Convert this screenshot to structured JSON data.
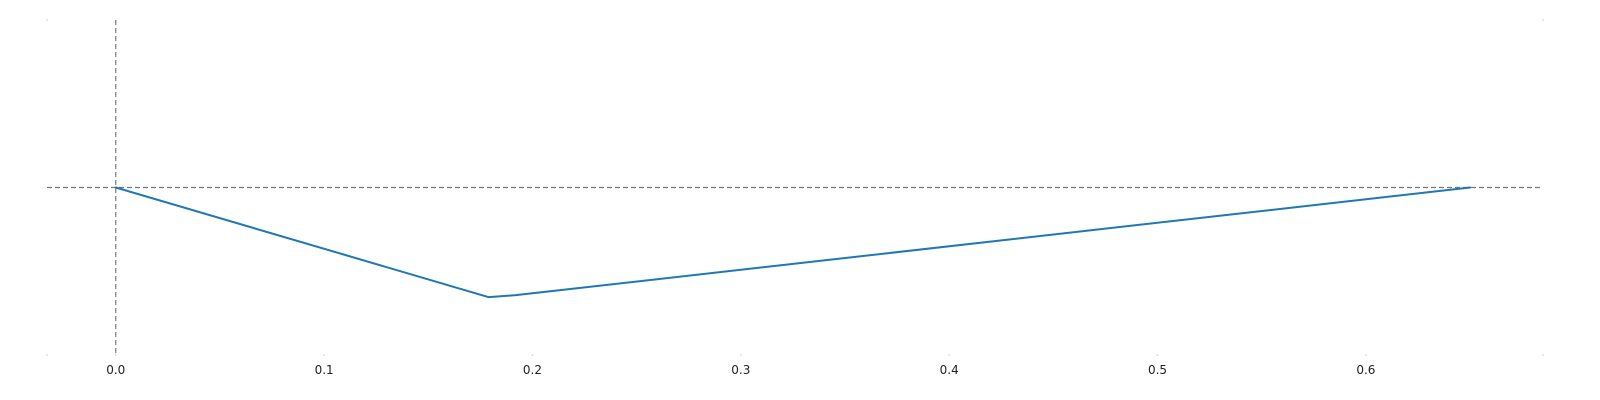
{
  "chart_data": {
    "type": "line",
    "title": "",
    "xlabel": "",
    "ylabel": "",
    "xlim": [
      -0.033,
      0.685
    ],
    "ylim": [
      -0.42,
      0.42
    ],
    "x_ticks": [
      0.0,
      0.1,
      0.2,
      0.3,
      0.4,
      0.5,
      0.6
    ],
    "x_tick_labels": [
      "0.0",
      "0.1",
      "0.2",
      "0.3",
      "0.4",
      "0.5",
      "0.6"
    ],
    "show_y_ticks": false,
    "grid": false,
    "frame": false,
    "reference_lines": {
      "horizontal_y": 0,
      "vertical_x": 0,
      "style": "dashed",
      "color": "#777777"
    },
    "series": [
      {
        "color": "#1f77b4",
        "points": [
          {
            "x": 0.0,
            "y": 0.0
          },
          {
            "x": 0.179,
            "y": -0.275
          },
          {
            "x": 0.192,
            "y": -0.27
          },
          {
            "x": 0.65,
            "y": 0.0
          }
        ]
      }
    ]
  }
}
